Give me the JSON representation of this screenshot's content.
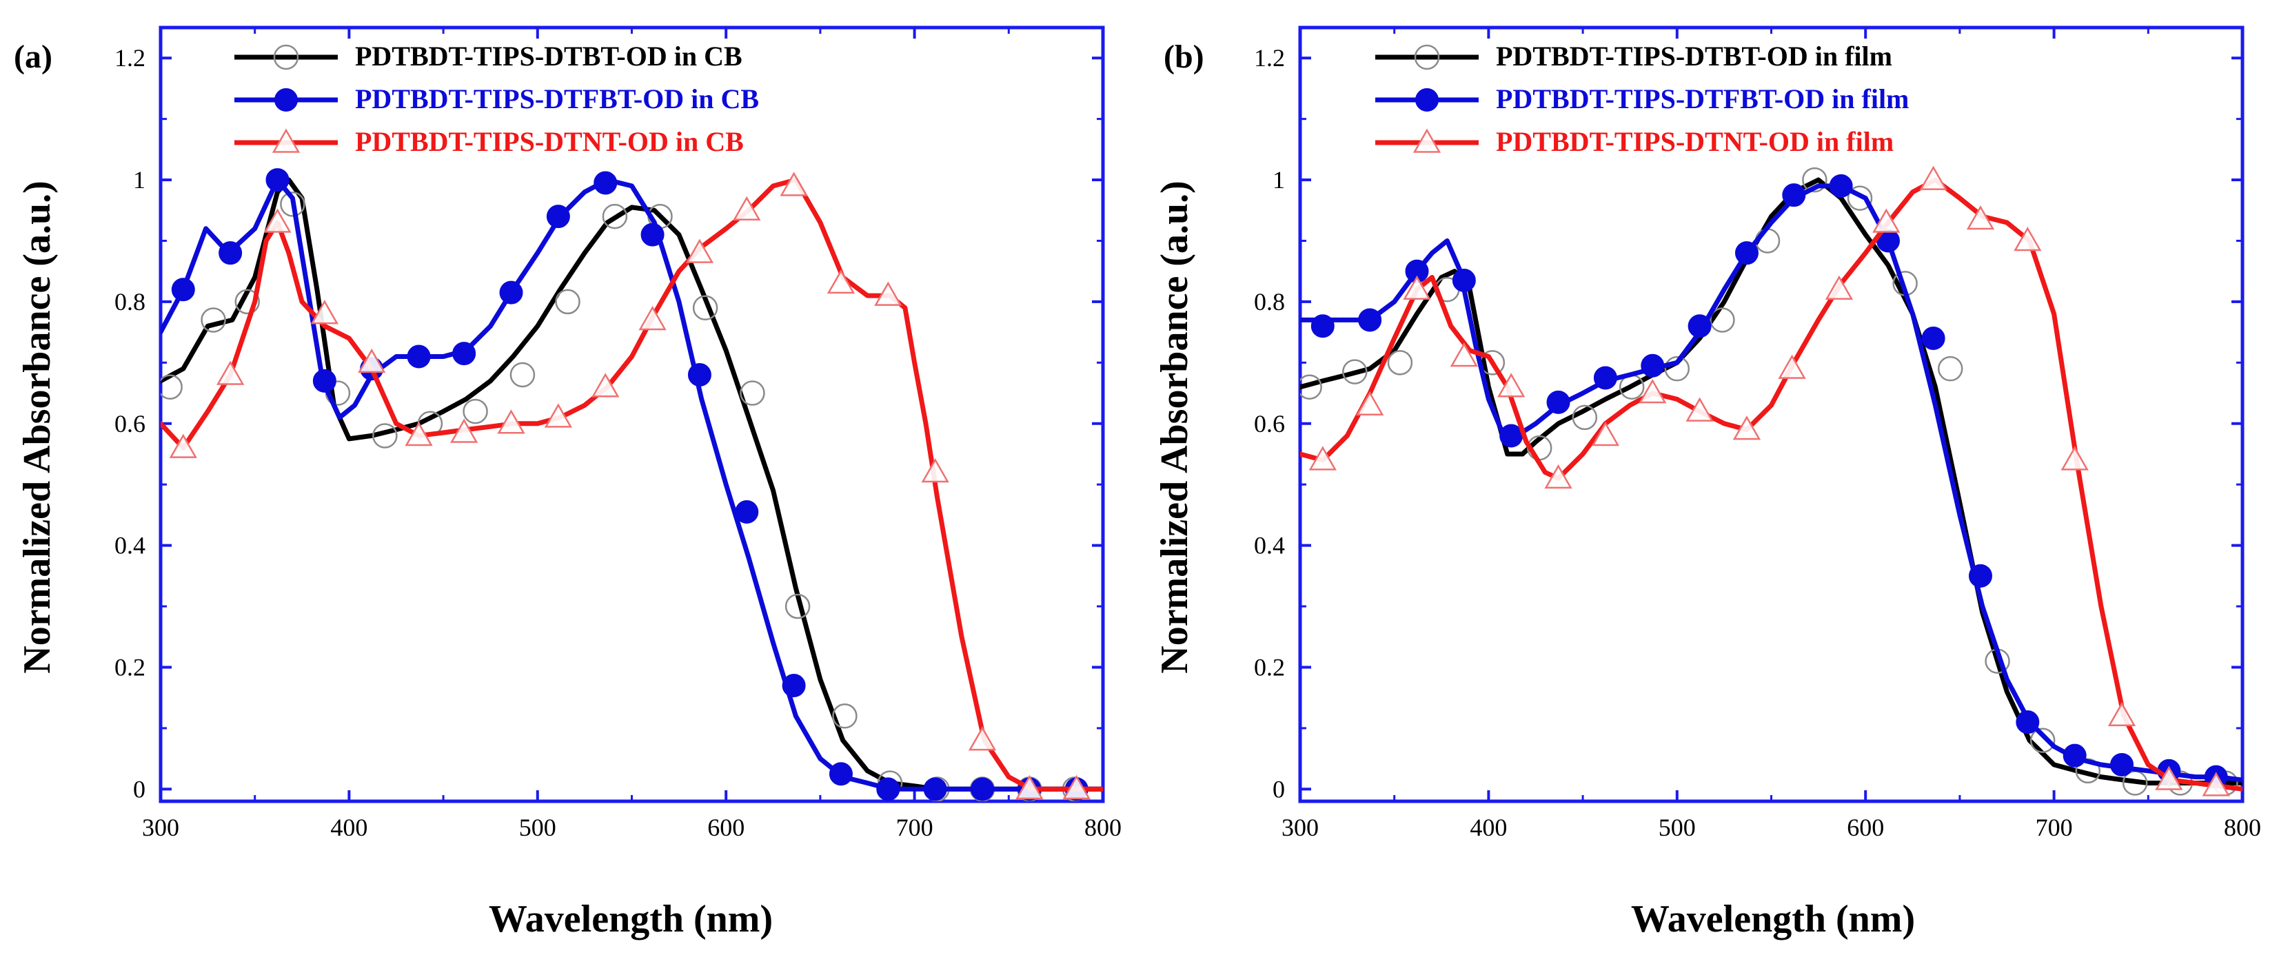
{
  "chart_data": [
    {
      "type": "line",
      "panel_label": "(a)",
      "xlabel": "Wavelength (nm)",
      "ylabel": "Normalized Absorbance (a.u.)",
      "xlim": [
        300,
        800
      ],
      "ylim": [
        -0.02,
        1.25
      ],
      "xticks": [
        300,
        400,
        500,
        600,
        700,
        800
      ],
      "yticks": [
        0,
        0.2,
        0.4,
        0.6,
        0.8,
        1,
        1.2
      ],
      "xtick_labels": [
        "300",
        "400",
        "500",
        "600",
        "700",
        "800"
      ],
      "ytick_labels": [
        "0",
        "0.2",
        "0.4",
        "0.6",
        "0.8",
        "1",
        "1.2"
      ],
      "legend_position": "top",
      "series": [
        {
          "name": "PDTBDT-TIPS-DTBT-OD in CB",
          "color": "#000000",
          "marker": "open-circle",
          "x": [
            300,
            312,
            325,
            338,
            350,
            362,
            368,
            375,
            383,
            392,
            400,
            412,
            425,
            437,
            450,
            462,
            475,
            487,
            500,
            512,
            525,
            537,
            550,
            562,
            575,
            587,
            600,
            612,
            625,
            637,
            650,
            662,
            675,
            687,
            700,
            712,
            725,
            737,
            750,
            762,
            775,
            787,
            800
          ],
          "y": [
            0.67,
            0.69,
            0.76,
            0.77,
            0.84,
            0.98,
            1.0,
            0.97,
            0.82,
            0.63,
            0.575,
            0.58,
            0.59,
            0.6,
            0.62,
            0.64,
            0.67,
            0.71,
            0.76,
            0.82,
            0.88,
            0.93,
            0.955,
            0.95,
            0.91,
            0.82,
            0.72,
            0.61,
            0.49,
            0.33,
            0.18,
            0.08,
            0.03,
            0.01,
            0.005,
            0.0,
            0.0,
            0.0,
            0.0,
            0.0,
            0.0,
            0.0,
            0.0
          ],
          "markers_x": [
            305,
            328,
            346,
            370,
            394,
            419,
            443,
            467,
            492,
            516,
            541,
            565,
            589,
            614,
            638,
            663,
            687,
            712,
            736,
            761,
            785
          ],
          "markers_y": [
            0.66,
            0.77,
            0.8,
            0.96,
            0.65,
            0.58,
            0.6,
            0.62,
            0.68,
            0.8,
            0.94,
            0.94,
            0.79,
            0.65,
            0.3,
            0.12,
            0.01,
            0.0,
            0.0,
            0.0,
            0.0
          ]
        },
        {
          "name": "PDTBDT-TIPS-DTFBT-OD in CB",
          "color": "#0b0bd9",
          "marker": "filled-circle",
          "x": [
            300,
            312,
            324,
            336,
            350,
            362,
            370,
            378,
            386,
            395,
            403,
            412,
            425,
            437,
            450,
            462,
            475,
            487,
            500,
            512,
            525,
            537,
            550,
            562,
            575,
            587,
            600,
            612,
            625,
            637,
            650,
            662,
            675,
            687,
            700,
            712,
            725,
            737,
            750,
            762,
            775,
            787,
            800
          ],
          "y": [
            0.75,
            0.82,
            0.92,
            0.88,
            0.92,
            1.0,
            0.97,
            0.82,
            0.67,
            0.61,
            0.63,
            0.68,
            0.71,
            0.71,
            0.71,
            0.72,
            0.76,
            0.82,
            0.88,
            0.94,
            0.98,
            1.0,
            0.99,
            0.93,
            0.8,
            0.64,
            0.5,
            0.38,
            0.24,
            0.12,
            0.05,
            0.02,
            0.01,
            0.0,
            0.0,
            0.0,
            0.0,
            0.0,
            0.0,
            0.0,
            0.0,
            0.0,
            0.0
          ],
          "markers_x": [
            312,
            337,
            362,
            387,
            412,
            437,
            461,
            486,
            511,
            536,
            561,
            586,
            611,
            636,
            661,
            686,
            711,
            736,
            761,
            786
          ],
          "markers_y": [
            0.82,
            0.88,
            1.0,
            0.67,
            0.69,
            0.71,
            0.715,
            0.815,
            0.94,
            0.995,
            0.91,
            0.68,
            0.455,
            0.17,
            0.025,
            0.0,
            0.0,
            0.0,
            0.0,
            0.0
          ]
        },
        {
          "name": "PDTBDT-TIPS-DTNT-OD in CB",
          "color": "#f01818",
          "marker": "open-triangle",
          "x": [
            300,
            312,
            325,
            337,
            350,
            356,
            362,
            368,
            375,
            387,
            400,
            412,
            425,
            437,
            450,
            462,
            475,
            487,
            500,
            512,
            525,
            537,
            550,
            562,
            575,
            587,
            600,
            612,
            625,
            637,
            650,
            662,
            675,
            687,
            695,
            700,
            706,
            712,
            725,
            737,
            750,
            762,
            775,
            787,
            800
          ],
          "y": [
            0.6,
            0.56,
            0.62,
            0.68,
            0.8,
            0.9,
            0.93,
            0.88,
            0.8,
            0.76,
            0.74,
            0.69,
            0.6,
            0.58,
            0.585,
            0.59,
            0.595,
            0.6,
            0.6,
            0.61,
            0.63,
            0.66,
            0.71,
            0.78,
            0.85,
            0.89,
            0.92,
            0.95,
            0.99,
            1.0,
            0.93,
            0.84,
            0.81,
            0.81,
            0.79,
            0.7,
            0.6,
            0.48,
            0.25,
            0.08,
            0.02,
            0.0,
            0.0,
            0.0,
            0.0
          ],
          "markers_x": [
            312,
            337,
            362,
            387,
            412,
            437,
            461,
            486,
            511,
            536,
            561,
            586,
            611,
            636,
            661,
            686,
            711,
            736,
            761,
            786
          ],
          "markers_y": [
            0.56,
            0.68,
            0.93,
            0.78,
            0.7,
            0.58,
            0.585,
            0.6,
            0.61,
            0.66,
            0.77,
            0.88,
            0.95,
            0.99,
            0.83,
            0.81,
            0.52,
            0.08,
            0.0,
            0.0
          ]
        }
      ]
    },
    {
      "type": "line",
      "panel_label": "(b)",
      "xlabel": "Wavelength (nm)",
      "ylabel": "Normalized Absorbance (a.u.)",
      "xlim": [
        300,
        800
      ],
      "ylim": [
        -0.02,
        1.25
      ],
      "xticks": [
        300,
        400,
        500,
        600,
        700,
        800
      ],
      "yticks": [
        0,
        0.2,
        0.4,
        0.6,
        0.8,
        1,
        1.2
      ],
      "xtick_labels": [
        "300",
        "400",
        "500",
        "600",
        "700",
        "800"
      ],
      "ytick_labels": [
        "0",
        "0.2",
        "0.4",
        "0.6",
        "0.8",
        "1",
        "1.2"
      ],
      "legend_position": "top",
      "series": [
        {
          "name": "PDTBDT-TIPS-DTBT-OD in film",
          "color": "#000000",
          "marker": "open-circle",
          "x": [
            300,
            312,
            325,
            337,
            350,
            362,
            375,
            382,
            390,
            400,
            410,
            418,
            425,
            437,
            450,
            462,
            475,
            487,
            500,
            512,
            525,
            537,
            550,
            562,
            575,
            587,
            600,
            612,
            625,
            637,
            650,
            662,
            675,
            687,
            700,
            712,
            725,
            737,
            750,
            762,
            775,
            787,
            800
          ],
          "y": [
            0.66,
            0.67,
            0.68,
            0.69,
            0.72,
            0.78,
            0.84,
            0.85,
            0.82,
            0.66,
            0.55,
            0.55,
            0.57,
            0.6,
            0.62,
            0.64,
            0.66,
            0.68,
            0.7,
            0.74,
            0.8,
            0.87,
            0.94,
            0.98,
            1.0,
            0.97,
            0.91,
            0.86,
            0.78,
            0.66,
            0.47,
            0.29,
            0.16,
            0.08,
            0.04,
            0.03,
            0.02,
            0.015,
            0.01,
            0.01,
            0.01,
            0.01,
            0.01
          ],
          "markers_x": [
            305,
            329,
            353,
            378,
            402,
            427,
            451,
            476,
            500,
            524,
            548,
            573,
            597,
            621,
            645,
            670,
            694,
            718,
            743,
            767,
            791
          ],
          "markers_y": [
            0.66,
            0.685,
            0.7,
            0.82,
            0.7,
            0.56,
            0.61,
            0.66,
            0.69,
            0.77,
            0.9,
            1.0,
            0.97,
            0.83,
            0.69,
            0.21,
            0.08,
            0.03,
            0.01,
            0.01,
            0.01
          ]
        },
        {
          "name": "PDTBDT-TIPS-DTFBT-OD in film",
          "color": "#0b0bd9",
          "marker": "filled-circle",
          "x": [
            300,
            312,
            325,
            337,
            350,
            362,
            370,
            378,
            385,
            393,
            400,
            408,
            415,
            425,
            437,
            450,
            462,
            475,
            487,
            500,
            512,
            525,
            537,
            550,
            562,
            575,
            587,
            600,
            612,
            625,
            637,
            650,
            662,
            675,
            687,
            700,
            712,
            725,
            737,
            750,
            762,
            775,
            787,
            800
          ],
          "y": [
            0.77,
            0.77,
            0.77,
            0.77,
            0.8,
            0.85,
            0.88,
            0.9,
            0.85,
            0.73,
            0.64,
            0.58,
            0.58,
            0.6,
            0.63,
            0.65,
            0.67,
            0.68,
            0.69,
            0.7,
            0.75,
            0.82,
            0.88,
            0.93,
            0.97,
            0.99,
            0.99,
            0.97,
            0.9,
            0.78,
            0.63,
            0.45,
            0.3,
            0.18,
            0.11,
            0.07,
            0.05,
            0.04,
            0.035,
            0.03,
            0.025,
            0.02,
            0.02,
            0.015
          ],
          "markers_x": [
            312,
            337,
            362,
            387,
            412,
            437,
            462,
            487,
            512,
            537,
            562,
            587,
            612,
            636,
            661,
            686,
            711,
            736,
            761,
            786
          ],
          "markers_y": [
            0.76,
            0.77,
            0.85,
            0.835,
            0.58,
            0.635,
            0.675,
            0.695,
            0.76,
            0.88,
            0.975,
            0.99,
            0.9,
            0.74,
            0.35,
            0.11,
            0.055,
            0.04,
            0.03,
            0.02
          ]
        },
        {
          "name": "PDTBDT-TIPS-DTNT-OD in film",
          "color": "#f01818",
          "marker": "open-triangle",
          "x": [
            300,
            312,
            325,
            337,
            350,
            362,
            370,
            380,
            390,
            400,
            410,
            420,
            430,
            437,
            450,
            462,
            475,
            487,
            500,
            512,
            525,
            537,
            550,
            562,
            575,
            587,
            600,
            612,
            625,
            637,
            650,
            662,
            675,
            687,
            700,
            712,
            725,
            737,
            750,
            762,
            775,
            787,
            800
          ],
          "y": [
            0.55,
            0.54,
            0.58,
            0.65,
            0.74,
            0.82,
            0.84,
            0.76,
            0.72,
            0.71,
            0.66,
            0.57,
            0.52,
            0.51,
            0.55,
            0.6,
            0.63,
            0.65,
            0.64,
            0.62,
            0.6,
            0.59,
            0.63,
            0.7,
            0.77,
            0.83,
            0.88,
            0.93,
            0.98,
            1.0,
            0.97,
            0.94,
            0.93,
            0.9,
            0.78,
            0.54,
            0.3,
            0.12,
            0.04,
            0.015,
            0.01,
            0.005,
            0.0
          ],
          "markers_x": [
            312,
            337,
            362,
            387,
            412,
            437,
            462,
            487,
            512,
            537,
            561,
            586,
            611,
            636,
            661,
            686,
            711,
            736,
            761,
            786
          ],
          "markers_y": [
            0.54,
            0.63,
            0.82,
            0.71,
            0.66,
            0.51,
            0.58,
            0.65,
            0.62,
            0.59,
            0.69,
            0.82,
            0.93,
            1.0,
            0.935,
            0.9,
            0.54,
            0.12,
            0.015,
            0.005
          ]
        }
      ]
    }
  ]
}
